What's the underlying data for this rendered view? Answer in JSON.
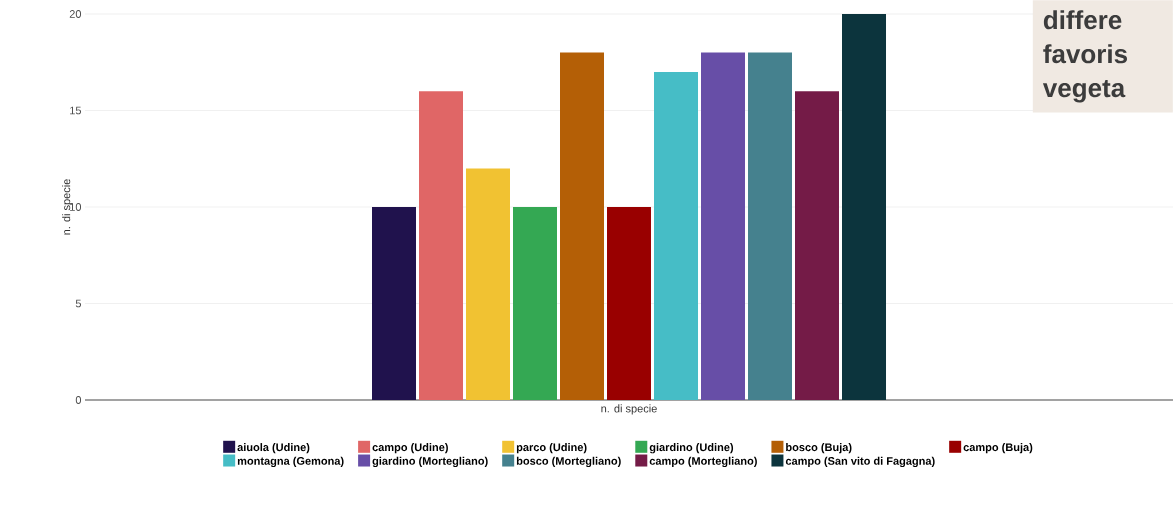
{
  "chart_data": {
    "type": "bar",
    "xlabel": "n. di specie",
    "ylabel": "n. di specie",
    "categories": [
      null
    ],
    "series": [
      {
        "name": "aiuola (Udine)",
        "color": "#20124d",
        "values": [
          10
        ]
      },
      {
        "name": "campo (Udine)",
        "color": "#e06666",
        "values": [
          16
        ]
      },
      {
        "name": "parco (Udine)",
        "color": "#f1c232",
        "values": [
          12
        ]
      },
      {
        "name": "giardino (Udine)",
        "color": "#34a853",
        "values": [
          10
        ]
      },
      {
        "name": "bosco (Buja)",
        "color": "#b45f06",
        "values": [
          18
        ]
      },
      {
        "name": "campo (Buja)",
        "color": "#990000",
        "values": [
          10
        ]
      },
      {
        "name": "montagna (Gemona)",
        "color": "#46bdc6",
        "values": [
          17
        ]
      },
      {
        "name": "giardino (Mortegliano)",
        "color": "#674ea7",
        "values": [
          18
        ]
      },
      {
        "name": "bosco (Mortegliano)",
        "color": "#45818e",
        "values": [
          18
        ]
      },
      {
        "name": "campo (Mortegliano)",
        "color": "#741b47",
        "values": [
          16
        ]
      },
      {
        "name": "campo (San vito di Fagagna)",
        "color": "#0c343d",
        "values": [
          20
        ]
      }
    ],
    "ylim": [
      0,
      20
    ],
    "yticks": [
      0,
      5,
      10,
      15,
      20
    ],
    "grid": "y",
    "legend": "bottom",
    "annotations": [
      "differe",
      "favoris",
      "vegeta"
    ]
  }
}
